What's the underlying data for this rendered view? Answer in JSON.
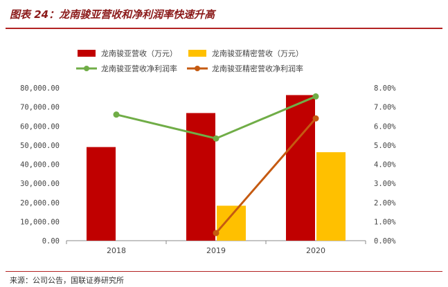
{
  "header": {
    "title": "图表 24：龙南骏亚营收和净利润率快速升高"
  },
  "footer": {
    "source": "来源：公司公告，国联证券研究所"
  },
  "chart_data": {
    "type": "bar",
    "categories": [
      "2018",
      "2019",
      "2020"
    ],
    "series": [
      {
        "name": "龙南骏亚营收（万元）",
        "kind": "bar",
        "axis": "left",
        "color": "#c00000",
        "values": [
          49000,
          66800,
          76200
        ]
      },
      {
        "name": "龙南骏亚精密营收（万元）",
        "kind": "bar",
        "axis": "left",
        "color": "#ffc000",
        "values": [
          null,
          18300,
          46300
        ]
      },
      {
        "name": "龙南骏亚营收净利润率",
        "kind": "line",
        "axis": "right",
        "color": "#70ad47",
        "values": [
          6.6,
          5.35,
          7.55
        ]
      },
      {
        "name": "龙南骏亚精密营收净利润率",
        "kind": "line",
        "axis": "right",
        "color": "#c55a11",
        "values": [
          null,
          0.4,
          6.4
        ]
      }
    ],
    "y_left": {
      "min": 0,
      "max": 80000,
      "ticks": [
        "0.00",
        "10,000.00",
        "20,000.00",
        "30,000.00",
        "40,000.00",
        "50,000.00",
        "60,000.00",
        "70,000.00",
        "80,000.00"
      ]
    },
    "y_right": {
      "min": 0,
      "max": 8,
      "ticks": [
        "0.00%",
        "1.00%",
        "2.00%",
        "3.00%",
        "4.00%",
        "5.00%",
        "6.00%",
        "7.00%",
        "8.00%"
      ]
    },
    "grid": false,
    "legend": "top"
  }
}
